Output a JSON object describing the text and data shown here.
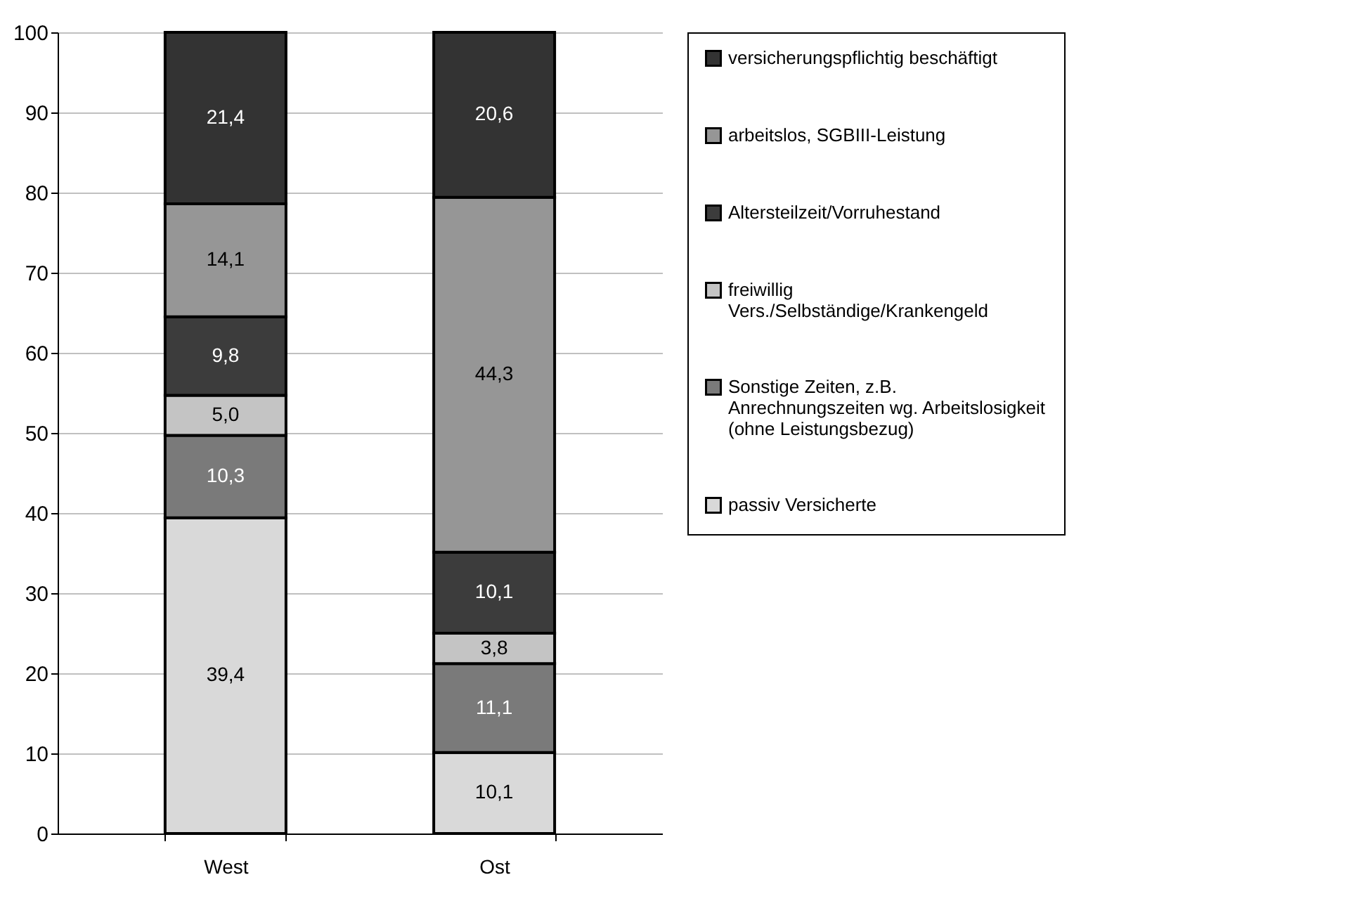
{
  "chart_data": {
    "type": "bar",
    "stacked": true,
    "categories": [
      "West",
      "Ost"
    ],
    "series": [
      {
        "name": "passiv Versicherte",
        "color": "#d9d9d9",
        "values": [
          39.4,
          10.1
        ],
        "value_labels": [
          "39,4",
          "10,1"
        ]
      },
      {
        "name": "Sonstige Zeiten, z.B. Anrechnungszeiten wg. Arbeitslosigkeit (ohne Leistungsbezug)",
        "color": "#7a7a7a",
        "values": [
          10.3,
          11.1
        ],
        "value_labels": [
          "10,3",
          "11,1"
        ]
      },
      {
        "name": "freiwillig Vers./Selbständige/Krankengeld",
        "color": "#c4c4c4",
        "values": [
          5.0,
          3.8
        ],
        "value_labels": [
          "5,0",
          "3,8"
        ]
      },
      {
        "name": "Altersteilzeit/Vorruhestand",
        "color": "#3c3c3c",
        "values": [
          9.8,
          10.1
        ],
        "value_labels": [
          "9,8",
          "10,1"
        ]
      },
      {
        "name": "arbeitslos, SGBIII-Leistung",
        "color": "#969696",
        "values": [
          14.1,
          44.3
        ],
        "value_labels": [
          "14,1",
          "44,3"
        ]
      },
      {
        "name": "versicherungspflichtig beschäftigt",
        "color": "#333333",
        "values": [
          21.4,
          20.6
        ],
        "value_labels": [
          "21,4",
          "20,6"
        ]
      }
    ],
    "ylim": [
      0,
      100
    ],
    "yticks": [
      0,
      10,
      20,
      30,
      40,
      50,
      60,
      70,
      80,
      90,
      100
    ],
    "grid": "y",
    "legend": "right"
  }
}
